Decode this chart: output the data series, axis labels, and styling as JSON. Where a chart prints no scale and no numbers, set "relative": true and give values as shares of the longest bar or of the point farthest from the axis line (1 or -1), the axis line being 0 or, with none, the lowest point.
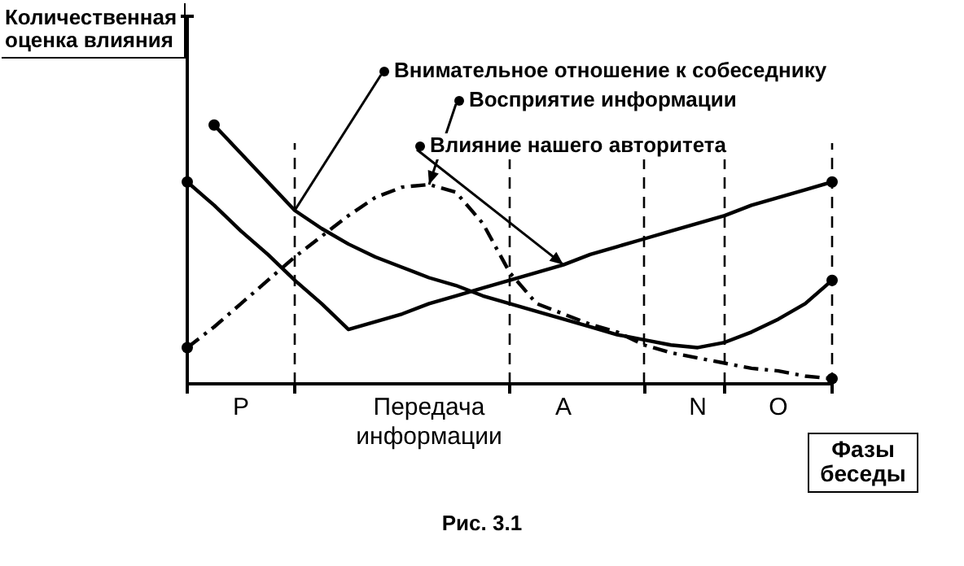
{
  "chart_data": {
    "type": "line",
    "relative": true,
    "ylabel": "Количественная оценка влияния",
    "xlabel": "Фазы беседы",
    "categories": [
      null,
      null,
      "P",
      null,
      null,
      null,
      null,
      null,
      null,
      "Передача информации",
      null,
      null,
      null,
      null,
      "A",
      null,
      null,
      null,
      null,
      "N",
      null,
      null,
      "O",
      null,
      null
    ],
    "legend": "top",
    "grid": "x",
    "annotations": [
      "Рис. 3.1"
    ],
    "series": [
      {
        "name": "Внимательное отношение к собеседнику",
        "color": "#000000",
        "line_style": "solid",
        "values": [
          null,
          1,
          0.89,
          0.78,
          0.67,
          0.6,
          0.54,
          0.49,
          0.45,
          0.41,
          0.38,
          0.34,
          0.31,
          0.28,
          0.25,
          0.22,
          0.19,
          0.17,
          0.15,
          0.14,
          0.16,
          0.2,
          0.25,
          0.31,
          0.4
        ]
      },
      {
        "name": "Восприятие информации",
        "color": "#000000",
        "line_style": "dashed",
        "values": [
          0.14,
          0.22,
          0.31,
          0.4,
          0.49,
          0.57,
          0.65,
          0.72,
          0.76,
          0.77,
          0.74,
          0.62,
          0.43,
          0.31,
          0.27,
          0.23,
          0.2,
          0.15,
          0.12,
          0.1,
          0.08,
          0.06,
          0.05,
          0.03,
          0.02
        ]
      },
      {
        "name": "Влияние нашего авторитета",
        "color": "#000000",
        "line_style": "solid",
        "values": [
          0.78,
          0.69,
          0.59,
          0.5,
          0.4,
          0.31,
          0.21,
          0.24,
          0.27,
          0.31,
          0.34,
          0.37,
          0.4,
          0.43,
          0.46,
          0.5,
          0.53,
          0.56,
          0.59,
          0.62,
          0.65,
          0.69,
          0.72,
          0.75,
          0.78
        ]
      }
    ]
  }
}
